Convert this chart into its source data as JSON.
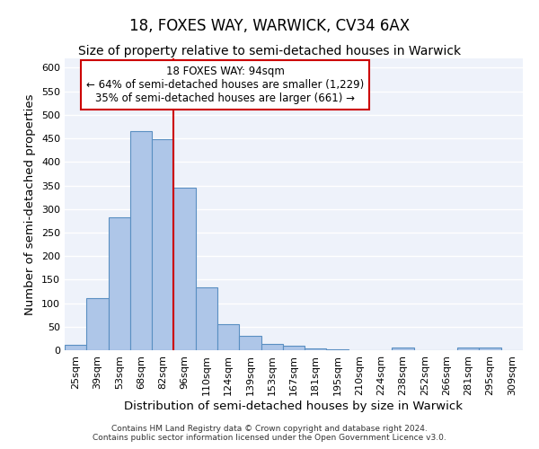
{
  "title": "18, FOXES WAY, WARWICK, CV34 6AX",
  "subtitle": "Size of property relative to semi-detached houses in Warwick",
  "xlabel": "Distribution of semi-detached houses by size in Warwick",
  "ylabel": "Number of semi-detached properties",
  "categories": [
    "25sqm",
    "39sqm",
    "53sqm",
    "68sqm",
    "82sqm",
    "96sqm",
    "110sqm",
    "124sqm",
    "139sqm",
    "153sqm",
    "167sqm",
    "181sqm",
    "195sqm",
    "210sqm",
    "224sqm",
    "238sqm",
    "252sqm",
    "266sqm",
    "281sqm",
    "295sqm",
    "309sqm"
  ],
  "values": [
    12,
    110,
    282,
    466,
    448,
    345,
    133,
    55,
    30,
    13,
    9,
    4,
    1,
    0,
    0,
    5,
    0,
    0,
    5,
    5,
    0
  ],
  "bar_color": "#aec6e8",
  "bar_edge_color": "#5a8fc2",
  "property_line_x": 5,
  "annotation_text_line1": "18 FOXES WAY: 94sqm",
  "annotation_text_line2": "← 64% of semi-detached houses are smaller (1,229)",
  "annotation_text_line3": "35% of semi-detached houses are larger (661) →",
  "annotation_box_color": "#ffffff",
  "annotation_box_edge": "#cc0000",
  "vline_color": "#cc0000",
  "ylim": [
    0,
    620
  ],
  "yticks": [
    0,
    50,
    100,
    150,
    200,
    250,
    300,
    350,
    400,
    450,
    500,
    550,
    600
  ],
  "footnote1": "Contains HM Land Registry data © Crown copyright and database right 2024.",
  "footnote2": "Contains public sector information licensed under the Open Government Licence v3.0.",
  "bg_color": "#eef2fa",
  "grid_color": "#ffffff",
  "title_fontsize": 12,
  "subtitle_fontsize": 10,
  "axis_label_fontsize": 9.5,
  "tick_fontsize": 8
}
